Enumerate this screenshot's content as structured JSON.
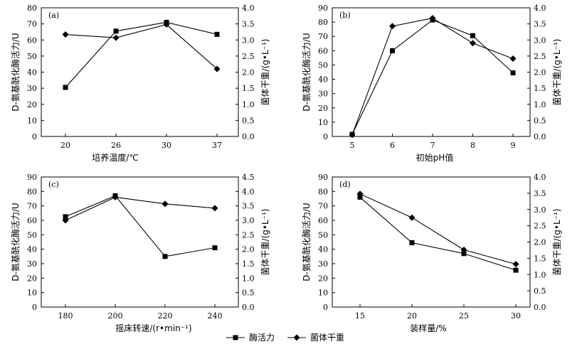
{
  "legend": {
    "enzyme_label": "酶活力",
    "biomass_label": "菌体干重"
  },
  "chart_data": [
    {
      "type": "line",
      "panel_label": "(a)",
      "xlabel": "培养温度/℃",
      "ylabel_left": "D-氨基酰化酶活力/U",
      "ylabel_right": "菌体干重/(g•L⁻¹)",
      "categories": [
        "20",
        "26",
        "30",
        "37"
      ],
      "ylim_left": [
        0,
        80
      ],
      "yticks_left": [
        "0",
        "10",
        "20",
        "30",
        "40",
        "50",
        "60",
        "70",
        "80"
      ],
      "ylim_right": [
        0,
        4.0
      ],
      "yticks_right": [
        "0.0",
        "0.5",
        "1.0",
        "1.5",
        "2.0",
        "2.5",
        "3.0",
        "3.5",
        "4.0"
      ],
      "series": [
        {
          "name": "酶活力",
          "axis": "left",
          "marker": "square",
          "values": [
            30.5,
            65.5,
            71,
            63.5
          ]
        },
        {
          "name": "菌体干重",
          "axis": "right",
          "marker": "diamond",
          "values": [
            3.17,
            3.07,
            3.48,
            2.1
          ]
        }
      ]
    },
    {
      "type": "line",
      "panel_label": "(b)",
      "xlabel": "初始pH值",
      "ylabel_left": "D-氨基酰化酶活力/U",
      "ylabel_right": "菌体干重/(g•L⁻¹)",
      "categories": [
        "5",
        "6",
        "7",
        "8",
        "9"
      ],
      "ylim_left": [
        0,
        90
      ],
      "yticks_left": [
        "0",
        "10",
        "20",
        "30",
        "40",
        "50",
        "60",
        "70",
        "80",
        "90"
      ],
      "ylim_right": [
        0,
        4.0
      ],
      "yticks_right": [
        "0.0",
        "0.5",
        "1.0",
        "1.5",
        "2.0",
        "2.5",
        "3.0",
        "3.5",
        "4.0"
      ],
      "series": [
        {
          "name": "酶活力",
          "axis": "left",
          "marker": "square",
          "values": [
            1.5,
            60,
            81.5,
            70.5,
            44.5
          ]
        },
        {
          "name": "菌体干重",
          "axis": "right",
          "marker": "diamond",
          "values": [
            0.05,
            3.43,
            3.68,
            2.9,
            2.42
          ]
        }
      ]
    },
    {
      "type": "line",
      "panel_label": "(c)",
      "xlabel": "摇床转速/(r•min⁻¹)",
      "ylabel_left": "D-氨基酰化酶活力/U",
      "ylabel_right": "菌体干重/(g•L⁻¹)",
      "categories": [
        "180",
        "200",
        "220",
        "240"
      ],
      "ylim_left": [
        0,
        90
      ],
      "yticks_left": [
        "0",
        "10",
        "20",
        "30",
        "40",
        "50",
        "60",
        "70",
        "80",
        "90"
      ],
      "ylim_right": [
        0,
        4.5
      ],
      "yticks_right": [
        "0.0",
        "0.5",
        "1.0",
        "1.5",
        "2.0",
        "2.5",
        "3.0",
        "3.5",
        "4.0",
        "4.5"
      ],
      "series": [
        {
          "name": "酶活力",
          "axis": "left",
          "marker": "square",
          "values": [
            62.5,
            77,
            35,
            41
          ]
        },
        {
          "name": "菌体干重",
          "axis": "right",
          "marker": "diamond",
          "values": [
            3.0,
            3.8,
            3.57,
            3.42
          ]
        }
      ]
    },
    {
      "type": "line",
      "panel_label": "(d)",
      "xlabel": "装样量/%",
      "ylabel_left": "D-氨基酰化酶活力/U",
      "ylabel_right": "菌体干重/(g•L⁻¹)",
      "categories": [
        "15",
        "20",
        "25",
        "30"
      ],
      "ylim_left": [
        0,
        90
      ],
      "yticks_left": [
        "0",
        "10",
        "20",
        "30",
        "40",
        "50",
        "60",
        "70",
        "80",
        "90"
      ],
      "ylim_right": [
        0,
        4.0
      ],
      "yticks_right": [
        "0.0",
        "0.5",
        "1.0",
        "1.5",
        "2.0",
        "2.5",
        "3.0",
        "3.5",
        "4.0"
      ],
      "series": [
        {
          "name": "酶活力",
          "axis": "left",
          "marker": "square",
          "values": [
            76,
            44.5,
            37,
            25.5
          ]
        },
        {
          "name": "菌体干重",
          "axis": "right",
          "marker": "diamond",
          "values": [
            3.48,
            2.75,
            1.76,
            1.32
          ]
        }
      ]
    }
  ]
}
